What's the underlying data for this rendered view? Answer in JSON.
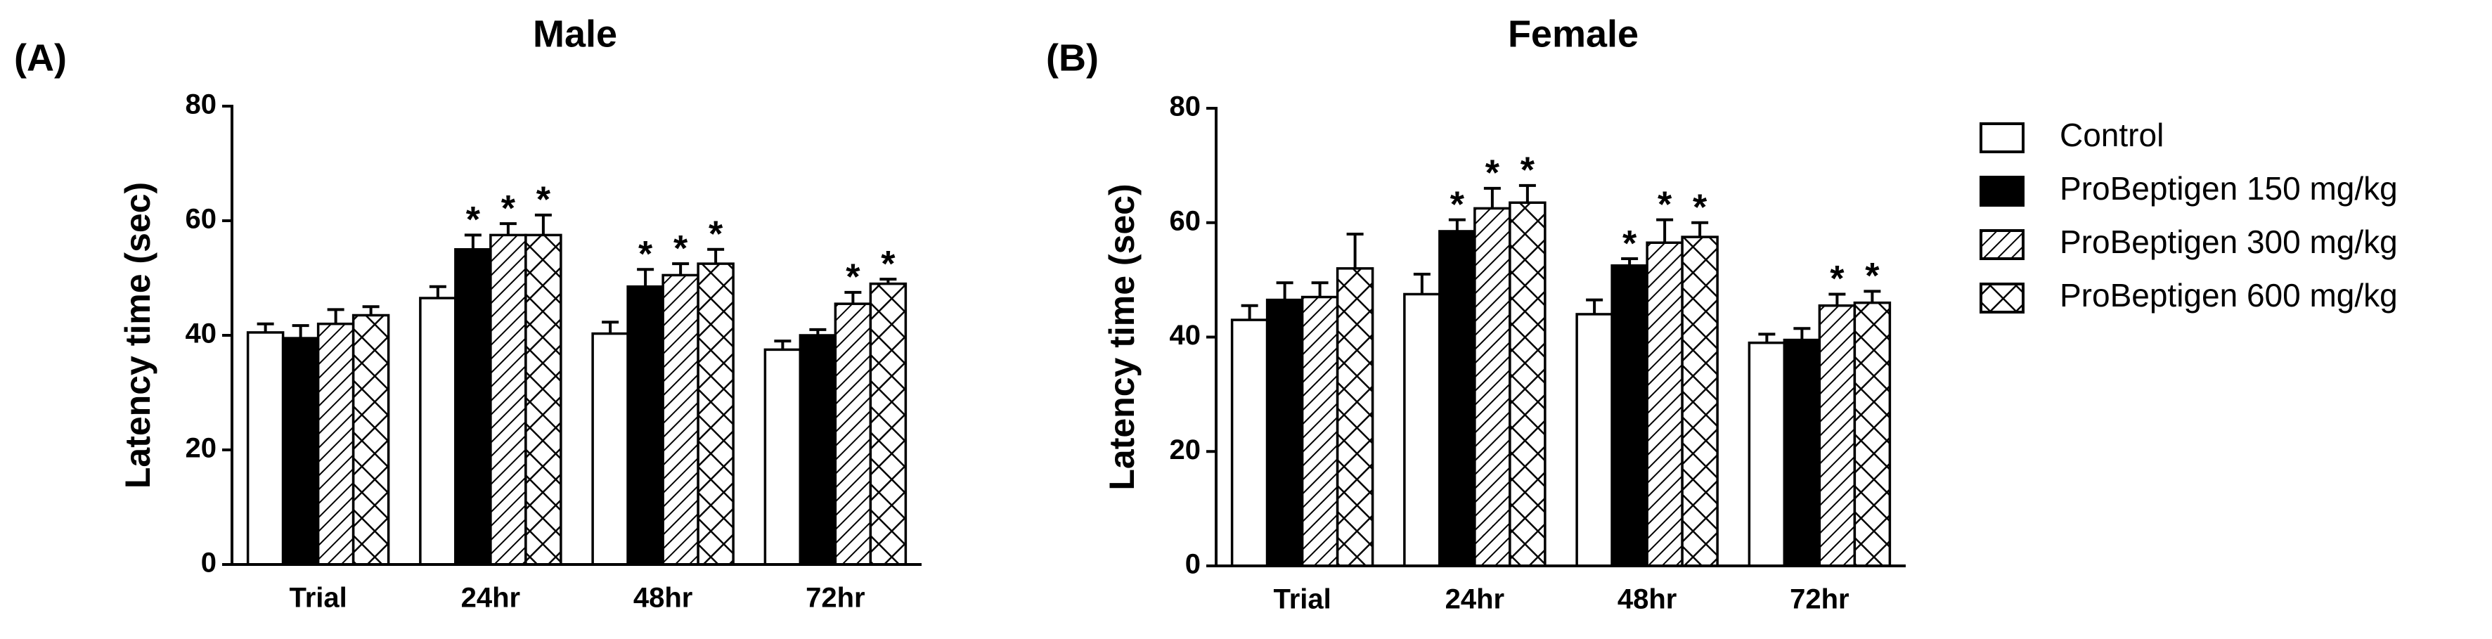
{
  "chart_data": [
    {
      "type": "bar",
      "panel": "(A)",
      "title": "Male",
      "ylabel": "Latency time (sec)",
      "categories": [
        "Trial",
        "24hr",
        "48hr",
        "72hr"
      ],
      "ylim": [
        0,
        80
      ],
      "yticks": [
        0,
        20,
        40,
        60,
        80
      ],
      "legend": "right",
      "series": [
        {
          "name": "Control",
          "color": "#ffffff",
          "pattern": "none",
          "values": [
            40.5,
            46.5,
            40.3,
            37.5
          ],
          "errors": [
            1.5,
            2,
            2,
            1.5
          ],
          "markers": [
            null,
            null,
            null,
            null
          ]
        },
        {
          "name": "ProBeptigen 150 mg/kg",
          "color": "#000000",
          "pattern": "solid",
          "values": [
            39.5,
            55,
            48.5,
            40
          ],
          "errors": [
            2.2,
            2.5,
            3,
            1
          ],
          "markers": [
            null,
            "*",
            "*",
            null
          ]
        },
        {
          "name": "ProBeptigen 300 mg/kg",
          "color": "#ffffff",
          "pattern": "diagonal",
          "values": [
            42,
            57.5,
            50.5,
            45.5
          ],
          "errors": [
            2.5,
            2,
            2,
            2
          ],
          "markers": [
            null,
            "*",
            "*",
            "*"
          ]
        },
        {
          "name": "ProBeptigen 600 mg/kg",
          "color": "#ffffff",
          "pattern": "crosshatch",
          "values": [
            43.5,
            57.5,
            52.5,
            49
          ],
          "errors": [
            1.5,
            3.5,
            2.5,
            0.8
          ],
          "markers": [
            null,
            "*",
            "*",
            "*"
          ]
        }
      ]
    },
    {
      "type": "bar",
      "panel": "(B)",
      "title": "Female",
      "ylabel": "Latency time (sec)",
      "categories": [
        "Trial",
        "24hr",
        "48hr",
        "72hr"
      ],
      "ylim": [
        0,
        80
      ],
      "yticks": [
        0,
        20,
        40,
        60,
        80
      ],
      "series": [
        {
          "color": "#ffffff",
          "pattern": "none",
          "values": [
            43,
            47.5,
            44,
            39
          ],
          "errors": [
            2.5,
            3.5,
            2.5,
            1.5
          ],
          "markers": [
            null,
            null,
            null,
            null
          ]
        },
        {
          "color": "#000000",
          "pattern": "solid",
          "values": [
            46.5,
            58.5,
            52.5,
            39.5
          ],
          "errors": [
            3,
            2,
            1.2,
            2
          ],
          "markers": [
            null,
            "*",
            "*",
            null
          ]
        },
        {
          "color": "#ffffff",
          "pattern": "diagonal",
          "values": [
            47,
            62.5,
            56.5,
            45.5
          ],
          "errors": [
            2.5,
            3.5,
            4,
            2
          ],
          "markers": [
            null,
            "*",
            "*",
            "*"
          ]
        },
        {
          "color": "#ffffff",
          "pattern": "crosshatch",
          "values": [
            52,
            63.5,
            57.5,
            46
          ],
          "errors": [
            6,
            3,
            2.5,
            2
          ],
          "markers": [
            null,
            "*",
            "*",
            "*"
          ]
        }
      ]
    }
  ]
}
